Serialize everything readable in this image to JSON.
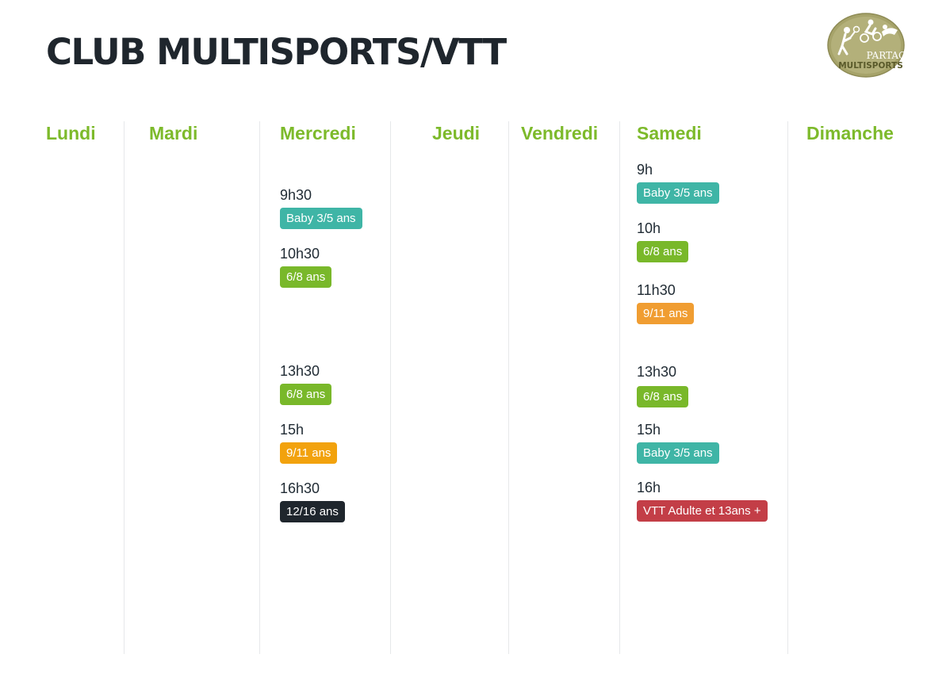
{
  "header": {
    "title": "CLUB MULTISPORTS/VTT",
    "logo": {
      "line1": "PARTAGE",
      "line2": "MULTISPORTS",
      "icon": "sports-silhouettes-logo"
    }
  },
  "colors": {
    "day_heading": "#7dba2b",
    "teal": "#3fb5a6",
    "green": "#79b82a",
    "orange": "#f09d32",
    "amber": "#f2a20d",
    "dark": "#1f262d",
    "red": "#c33e47"
  },
  "days": [
    {
      "name": "Lundi",
      "sessions": []
    },
    {
      "name": "Mardi",
      "sessions": []
    },
    {
      "name": "Mercredi",
      "sessions": [
        {
          "time": "9h30",
          "label": "Baby 3/5 ans",
          "color": "teal"
        },
        {
          "time": "10h30",
          "label": "6/8 ans",
          "color": "green"
        },
        {
          "time": "13h30",
          "label": "6/8 ans",
          "color": "green"
        },
        {
          "time": "15h",
          "label": "9/11 ans",
          "color": "amber"
        },
        {
          "time": "16h30",
          "label": "12/16 ans",
          "color": "dark"
        }
      ]
    },
    {
      "name": "Jeudi",
      "sessions": []
    },
    {
      "name": "Vendredi",
      "sessions": []
    },
    {
      "name": "Samedi",
      "sessions": [
        {
          "time": "9h",
          "label": "Baby 3/5 ans",
          "color": "teal"
        },
        {
          "time": "10h",
          "label": "6/8 ans",
          "color": "green"
        },
        {
          "time": "11h30",
          "label": "9/11 ans",
          "color": "orange"
        },
        {
          "time": "13h30",
          "label": "6/8 ans",
          "color": "green"
        },
        {
          "time": "15h",
          "label": "Baby 3/5 ans",
          "color": "teal"
        },
        {
          "time": "16h",
          "label": "VTT Adulte et 13ans +",
          "color": "red"
        }
      ]
    },
    {
      "name": "Dimanche",
      "sessions": []
    }
  ]
}
